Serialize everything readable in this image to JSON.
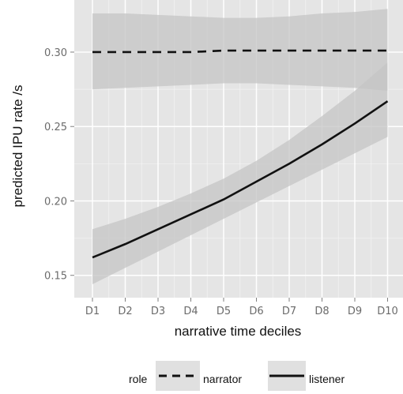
{
  "chart_data": {
    "type": "line",
    "title": "",
    "xlabel": "narrative time deciles",
    "ylabel": "predicted IPU rate /s",
    "categories": [
      "D1",
      "D2",
      "D3",
      "D4",
      "D5",
      "D6",
      "D7",
      "D8",
      "D9",
      "D10"
    ],
    "ylim": [
      0.135,
      0.335
    ],
    "yticks": [
      0.15,
      0.2,
      0.25,
      0.3
    ],
    "ytick_labels": [
      "0.15",
      "0.20",
      "0.25",
      "0.30"
    ],
    "grid": true,
    "legend": {
      "title": "role",
      "position": "bottom"
    },
    "series": [
      {
        "name": "narrator",
        "linestyle": "dashed",
        "values": [
          0.3,
          0.3,
          0.3,
          0.3,
          0.301,
          0.301,
          0.301,
          0.301,
          0.301,
          0.301
        ],
        "lower": [
          0.275,
          0.276,
          0.277,
          0.278,
          0.279,
          0.279,
          0.278,
          0.277,
          0.276,
          0.274
        ],
        "upper": [
          0.326,
          0.326,
          0.325,
          0.324,
          0.323,
          0.323,
          0.324,
          0.326,
          0.327,
          0.329
        ]
      },
      {
        "name": "listener",
        "linestyle": "solid",
        "values": [
          0.162,
          0.171,
          0.181,
          0.191,
          0.201,
          0.213,
          0.225,
          0.238,
          0.252,
          0.267
        ],
        "lower": [
          0.144,
          0.155,
          0.166,
          0.177,
          0.188,
          0.199,
          0.21,
          0.221,
          0.232,
          0.243
        ],
        "upper": [
          0.181,
          0.188,
          0.196,
          0.205,
          0.215,
          0.227,
          0.241,
          0.257,
          0.274,
          0.293
        ]
      }
    ],
    "colors": {
      "panel_background": "#e5e5e5",
      "grid_major": "#ffffff",
      "grid_minor": "#f2f2f2",
      "ribbon": "#c4c4c4",
      "line": "#111111"
    }
  }
}
